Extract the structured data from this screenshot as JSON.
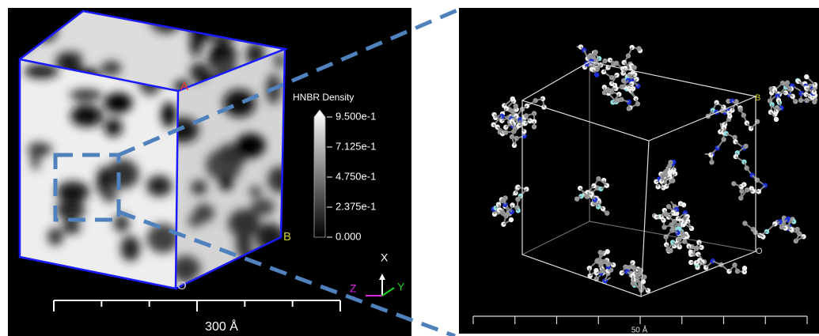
{
  "left_panel": {
    "legend": {
      "title": "HNBR Density",
      "ticks": [
        "9.500e-1",
        "7.125e-1",
        "4.750e-1",
        "2.375e-1",
        "0.000"
      ]
    },
    "corner_labels": {
      "a": "A",
      "b": "B",
      "o": "O"
    },
    "axes": {
      "x": "X",
      "y": "Y",
      "z": "Z"
    },
    "scale": "300 Å"
  },
  "right_panel": {
    "corner_labels": {
      "b": "B",
      "o": "O"
    },
    "scale": "50 Å"
  }
}
